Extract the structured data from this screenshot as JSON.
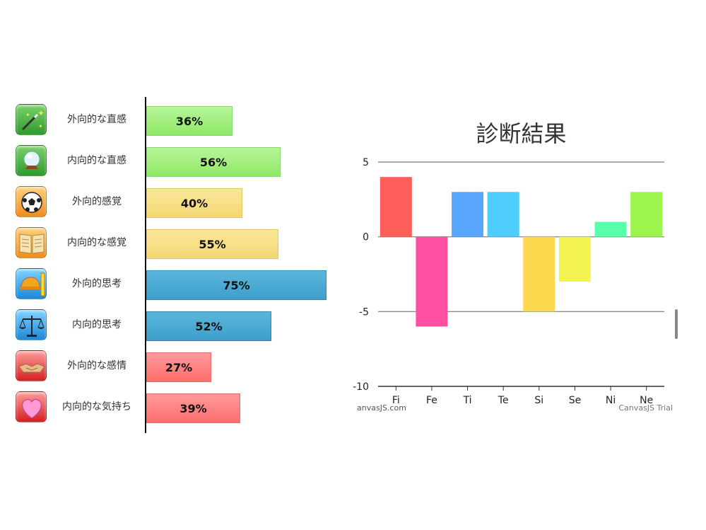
{
  "left_list": {
    "items": [
      {
        "label": "外向的な直感",
        "pct": "36%",
        "value": 36,
        "color": "green",
        "icon": "magic-wand-icon"
      },
      {
        "label": "内向的な直感",
        "pct": "56%",
        "value": 56,
        "color": "green",
        "icon": "crystal-ball-icon"
      },
      {
        "label": "外向的感覚",
        "pct": "40%",
        "value": 40,
        "color": "yellow",
        "icon": "soccer-ball-icon"
      },
      {
        "label": "内向的な感覚",
        "pct": "55%",
        "value": 55,
        "color": "yellow",
        "icon": "open-book-icon"
      },
      {
        "label": "外向的思考",
        "pct": "75%",
        "value": 75,
        "color": "blue",
        "icon": "hard-hat-ruler-icon"
      },
      {
        "label": "内向的思考",
        "pct": "52%",
        "value": 52,
        "color": "blue",
        "icon": "scales-icon"
      },
      {
        "label": "外向的な感情",
        "pct": "27%",
        "value": 27,
        "color": "red",
        "icon": "handshake-icon"
      },
      {
        "label": "内向的な気持ち",
        "pct": "39%",
        "value": 39,
        "color": "red",
        "icon": "heart-icon"
      }
    ]
  },
  "chart_data": {
    "type": "bar",
    "title": "診断結果",
    "categories": [
      "Fi",
      "Fe",
      "Ti",
      "Te",
      "Si",
      "Se",
      "Ni",
      "Ne"
    ],
    "values": [
      4,
      -6,
      3,
      3,
      -5,
      -3,
      1,
      3
    ],
    "colors": [
      "#ff5f5a",
      "#ff4fa0",
      "#58a6ff",
      "#4fcdfa",
      "#fcd94e",
      "#f3f454",
      "#58ffaa",
      "#9cf54f"
    ],
    "ylim": [
      -10,
      5
    ],
    "yticks": [
      5,
      0,
      -5,
      -10
    ],
    "xlabel": "",
    "ylabel": "",
    "grid": true,
    "credit_left": "anvasJS.com",
    "credit_right": "CanvasJS Trial"
  }
}
